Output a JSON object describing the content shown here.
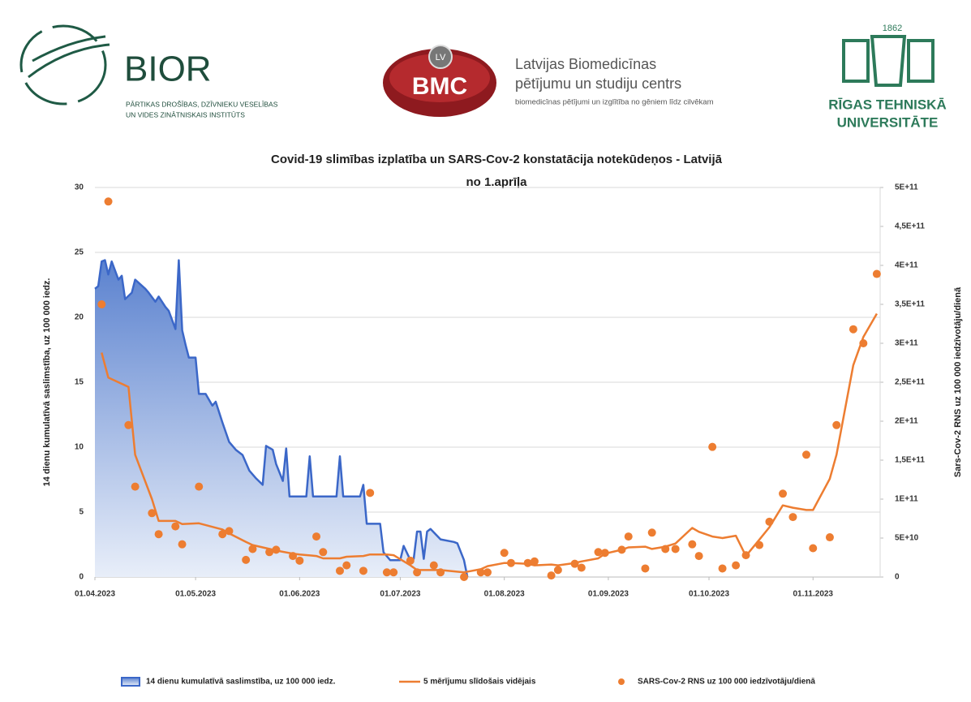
{
  "logos": {
    "bior": {
      "name": "BIOR",
      "lines": [
        "PĀRTIKAS DROŠĪBAS, DZĪVNIEKU VESELĪBAS",
        "UN VIDES ZINĀTNISKAIS INSTITŪTS"
      ]
    },
    "bmc": {
      "badge": "LV",
      "name": "BMC",
      "lines": [
        "Latvijas Biomedicīnas",
        "pētījumu un studiju centrs",
        "biomedicīnas pētījumi un izglītība no gēniem līdz cilvēkam"
      ]
    },
    "rtu": {
      "year": "1862",
      "lines": [
        "RĪGAS TEHNISKĀ",
        "UNIVERSITĀTE"
      ]
    }
  },
  "chart_data": {
    "type": "combo",
    "title": "Covid-19 slimības izplatība un SARS-Cov-2 konstatācija notekūdeņos - Latvijā",
    "subtitle": "no 1.aprīļa",
    "y_label": "14 dienu kumulatīvā saslimstība, uz 100 000 iedz.",
    "y2_label": "Sars-Cov-2 RNS uz 100 000 iedzīvotāju/dienā",
    "xlim": [
      "01.04.2023",
      "21.11.2023"
    ],
    "xticks": [
      "01.04.2023",
      "01.05.2023",
      "01.06.2023",
      "01.07.2023",
      "01.08.2023",
      "01.09.2023",
      "01.10.2023",
      "01.11.2023"
    ],
    "ylim": [
      0,
      30
    ],
    "yticks": [
      0,
      5,
      10,
      15,
      20,
      25,
      30
    ],
    "y2lim": [
      0,
      500000000000.0
    ],
    "y2ticks": [
      0,
      {
        "value": 50000000000.0,
        "label": "5E+10"
      },
      {
        "value": 100000000000.0,
        "label": "1E+11"
      },
      {
        "value": 150000000000.0,
        "label": "1,5E+11"
      },
      {
        "value": 200000000000.0,
        "label": "2E+11"
      },
      {
        "value": 250000000000.0,
        "label": "2,5E+11"
      },
      {
        "value": 300000000000.0,
        "label": "3E+11"
      },
      {
        "value": 350000000000.0,
        "label": "3,5E+11"
      },
      {
        "value": 400000000000.0,
        "label": "4E+11"
      },
      {
        "value": 450000000000.0,
        "label": "4,5E+11"
      },
      {
        "value": 500000000000.0,
        "label": "5E+11"
      }
    ],
    "grid": true,
    "legend": "bottom",
    "series": [
      {
        "name": "14 dienu kumulatīvā saslimstība, uz 100 000 iedz.",
        "type": "area",
        "color": "#3b67c8",
        "x": [
          "01.04.2023",
          "02.04.2023",
          "03.04.2023",
          "04.04.2023",
          "05.04.2023",
          "06.04.2023",
          "08.04.2023",
          "09.04.2023",
          "10.04.2023",
          "12.04.2023",
          "13.04.2023",
          "16.04.2023",
          "17.04.2023",
          "19.04.2023",
          "20.04.2023",
          "22.04.2023",
          "23.04.2023",
          "25.04.2023",
          "26.04.2023",
          "27.04.2023",
          "28.04.2023",
          "29.04.2023",
          "01.05.2023",
          "02.05.2023",
          "04.05.2023",
          "06.05.2023",
          "07.05.2023",
          "09.05.2023",
          "11.05.2023",
          "13.05.2023",
          "15.05.2023",
          "17.05.2023",
          "19.05.2023",
          "21.05.2023",
          "22.05.2023",
          "24.05.2023",
          "25.05.2023",
          "27.05.2023",
          "28.05.2023",
          "29.05.2023",
          "03.06.2023",
          "04.06.2023",
          "05.06.2023",
          "12.06.2023",
          "13.06.2023",
          "14.06.2023",
          "19.06.2023",
          "20.06.2023",
          "21.06.2023",
          "25.06.2023",
          "26.06.2023",
          "28.06.2023",
          "01.07.2023",
          "02.07.2023",
          "04.07.2023",
          "05.07.2023",
          "06.07.2023",
          "07.07.2023",
          "08.07.2023",
          "09.07.2023",
          "10.07.2023",
          "13.07.2023",
          "17.07.2023",
          "18.07.2023",
          "20.07.2023",
          "21.07.2023"
        ],
        "values": [
          22.2,
          22.4,
          24.3,
          24.4,
          23.3,
          24.3,
          22.9,
          23.2,
          21.4,
          21.9,
          22.9,
          22.2,
          21.9,
          21.2,
          21.6,
          20.8,
          20.5,
          19.1,
          24.4,
          19.0,
          17.9,
          16.9,
          16.9,
          14.1,
          14.1,
          13.2,
          13.5,
          11.9,
          10.4,
          9.8,
          9.4,
          8.2,
          7.6,
          7.1,
          10.1,
          9.8,
          8.7,
          7.4,
          9.9,
          6.2,
          6.2,
          9.3,
          6.2,
          6.2,
          9.3,
          6.2,
          6.2,
          7.1,
          4.1,
          4.1,
          1.9,
          1.3,
          1.3,
          2.4,
          1.3,
          1.4,
          3.5,
          3.5,
          1.4,
          3.5,
          3.7,
          2.9,
          2.7,
          2.6,
          1.3,
          0
        ]
      },
      {
        "name": "5 mērījumu slīdošais vidējais",
        "type": "line",
        "axis": "y2",
        "color": "#ed7d31",
        "x": [
          "03.04.2023",
          "05.04.2023",
          "11.04.2023",
          "13.04.2023",
          "18.04.2023",
          "20.04.2023",
          "25.04.2023",
          "27.04.2023",
          "02.05.2023",
          "09.05.2023",
          "11.05.2023",
          "16.05.2023",
          "18.05.2023",
          "23.05.2023",
          "25.05.2023",
          "30.05.2023",
          "01.06.2023",
          "06.06.2023",
          "08.06.2023",
          "13.06.2023",
          "15.06.2023",
          "20.06.2023",
          "22.06.2023",
          "27.06.2023",
          "29.06.2023",
          "04.07.2023",
          "06.07.2023",
          "11.07.2023",
          "13.07.2023",
          "20.07.2023",
          "25.07.2023",
          "27.07.2023",
          "01.08.2023",
          "03.08.2023",
          "08.08.2023",
          "10.08.2023",
          "15.08.2023",
          "17.08.2023",
          "22.08.2023",
          "24.08.2023",
          "29.08.2023",
          "31.08.2023",
          "05.09.2023",
          "07.09.2023",
          "12.09.2023",
          "14.09.2023",
          "18.09.2023",
          "21.09.2023",
          "26.09.2023",
          "28.09.2023",
          "02.10.2023",
          "05.10.2023",
          "09.10.2023",
          "12.10.2023",
          "16.10.2023",
          "19.10.2023",
          "23.10.2023",
          "26.10.2023",
          "30.10.2023",
          "01.11.2023",
          "06.11.2023",
          "08.11.2023",
          "13.11.2023",
          "16.11.2023",
          "20.11.2023"
        ],
        "values": [
          288000000000.0,
          256000000000.0,
          244000000000.0,
          157000000000.0,
          100000000000.0,
          72000000000.0,
          72000000000.0,
          68000000000.0,
          69000000000.0,
          61000000000.0,
          56000000000.0,
          45000000000.0,
          41000000000.0,
          36000000000.0,
          34000000000.0,
          30000000000.0,
          29000000000.0,
          27000000000.0,
          24000000000.0,
          24000000000.0,
          26000000000.0,
          27000000000.0,
          29000000000.0,
          29000000000.0,
          28000000000.0,
          15000000000.0,
          9000000000.0,
          9000000000.0,
          9000000000.0,
          6000000000.0,
          10000000000.0,
          14000000000.0,
          18000000000.0,
          18000000000.0,
          17000000000.0,
          15000000000.0,
          16000000000.0,
          15000000000.0,
          18000000000.0,
          20000000000.0,
          24000000000.0,
          30000000000.0,
          35000000000.0,
          38000000000.0,
          39000000000.0,
          36000000000.0,
          39000000000.0,
          43000000000.0,
          63000000000.0,
          58000000000.0,
          52000000000.0,
          50000000000.0,
          53000000000.0,
          27000000000.0,
          48000000000.0,
          64000000000.0,
          92000000000.0,
          89000000000.0,
          86000000000.0,
          86000000000.0,
          126000000000.0,
          157000000000.0,
          272000000000.0,
          308000000000.0,
          338000000000.0
        ]
      },
      {
        "name": "SARS-Cov-2 RNS uz 100 000 iedzīvotāju/dienā",
        "type": "scatter",
        "axis": "y2",
        "color": "#ed7d31",
        "x": [
          "03.04.2023",
          "05.04.2023",
          "11.04.2023",
          "13.04.2023",
          "18.04.2023",
          "20.04.2023",
          "25.04.2023",
          "27.04.2023",
          "02.05.2023",
          "09.05.2023",
          "11.05.2023",
          "16.05.2023",
          "18.05.2023",
          "23.05.2023",
          "25.05.2023",
          "30.05.2023",
          "01.06.2023",
          "06.06.2023",
          "08.06.2023",
          "13.06.2023",
          "15.06.2023",
          "20.06.2023",
          "22.06.2023",
          "27.06.2023",
          "29.06.2023",
          "04.07.2023",
          "06.07.2023",
          "11.07.2023",
          "13.07.2023",
          "20.07.2023",
          "25.07.2023",
          "27.07.2023",
          "01.08.2023",
          "03.08.2023",
          "08.08.2023",
          "10.08.2023",
          "15.08.2023",
          "17.08.2023",
          "22.08.2023",
          "24.08.2023",
          "29.08.2023",
          "31.08.2023",
          "05.09.2023",
          "07.09.2023",
          "12.09.2023",
          "14.09.2023",
          "18.09.2023",
          "21.09.2023",
          "26.09.2023",
          "28.09.2023",
          "02.10.2023",
          "05.10.2023",
          "09.10.2023",
          "12.10.2023",
          "16.10.2023",
          "19.10.2023",
          "23.10.2023",
          "26.10.2023",
          "30.10.2023",
          "01.11.2023",
          "06.11.2023",
          "08.11.2023",
          "13.11.2023",
          "16.11.2023",
          "20.11.2023"
        ],
        "values": [
          350000000000.0,
          482000000000.0,
          195000000000.0,
          116000000000.0,
          82000000000.0,
          55000000000.0,
          65000000000.0,
          42000000000.0,
          116000000000.0,
          55000000000.0,
          59000000000.0,
          22000000000.0,
          36000000000.0,
          32000000000.0,
          35000000000.0,
          27000000000.0,
          21000000000.0,
          52000000000.0,
          32000000000.0,
          8000000000.0,
          15000000000.0,
          8000000000.0,
          108000000000.0,
          6000000000.0,
          6000000000.0,
          21000000000.0,
          6000000000.0,
          15000000000.0,
          6000000000.0,
          0,
          6000000000.0,
          6000000000.0,
          31000000000.0,
          18000000000.0,
          18000000000.0,
          20000000000.0,
          2000000000.0,
          9000000000.0,
          17000000000.0,
          12000000000.0,
          32000000000.0,
          31000000000.0,
          35000000000.0,
          52000000000.0,
          11000000000.0,
          57000000000.0,
          36000000000.0,
          36000000000.0,
          42000000000.0,
          27000000000.0,
          167000000000.0,
          11000000000.0,
          15000000000.0,
          28000000000.0,
          41000000000.0,
          71000000000.0,
          107000000000.0,
          77000000000.0,
          157000000000.0,
          37000000000.0,
          51000000000.0,
          195000000000.0,
          318000000000.0,
          300000000000.0,
          389000000000.0
        ]
      }
    ]
  }
}
